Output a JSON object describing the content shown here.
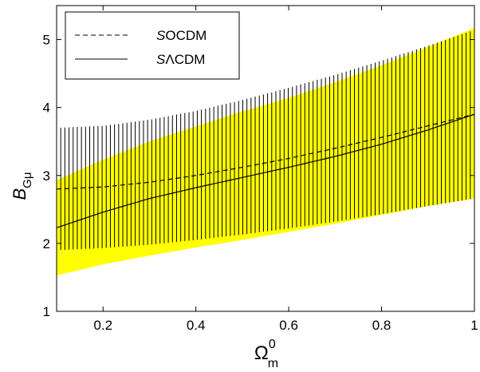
{
  "chart_data": {
    "type": "line",
    "x_range": [
      0.1,
      1.0
    ],
    "ylim": [
      1,
      5.5
    ],
    "x_ticks": [
      0.2,
      0.4,
      0.6,
      0.8,
      1.0
    ],
    "x_tick_labels": [
      "0.2",
      "0.4",
      "0.6",
      "0.8",
      "1"
    ],
    "y_ticks": [
      1,
      2,
      3,
      4,
      5
    ],
    "y_tick_labels": [
      "1",
      "2",
      "3",
      "4",
      "5"
    ],
    "ylabel_main": "B",
    "ylabel_sub": "Gμ",
    "xlabel_main": "Ω",
    "xlabel_sup": "0",
    "xlabel_sub": "m",
    "grid": false,
    "legend_position": "top-left",
    "series": [
      {
        "name_prefix": "S",
        "name_rest": "OCDM",
        "style": "dashed",
        "x": [
          0.1,
          0.2,
          0.3,
          0.4,
          0.5,
          0.6,
          0.7,
          0.8,
          0.9,
          1.0
        ],
        "y": [
          2.8,
          2.83,
          2.9,
          3.0,
          3.12,
          3.25,
          3.4,
          3.56,
          3.73,
          3.9
        ],
        "band_lower": [
          1.9,
          1.93,
          1.98,
          2.05,
          2.13,
          2.22,
          2.32,
          2.43,
          2.55,
          2.66
        ],
        "band_upper": [
          3.7,
          3.73,
          3.82,
          3.95,
          4.11,
          4.29,
          4.48,
          4.69,
          4.91,
          5.14
        ],
        "band_style": "vertical-hatch",
        "band_color": "#000000"
      },
      {
        "name_prefix": "S",
        "name_rest": "ΛCDM",
        "style": "solid",
        "x": [
          0.1,
          0.2,
          0.3,
          0.4,
          0.5,
          0.6,
          0.7,
          0.8,
          0.9,
          1.0
        ],
        "y": [
          2.23,
          2.46,
          2.66,
          2.82,
          2.97,
          3.12,
          3.28,
          3.46,
          3.67,
          3.9
        ],
        "band_lower": [
          1.53,
          1.69,
          1.82,
          1.94,
          2.05,
          2.17,
          2.29,
          2.42,
          2.55,
          2.66
        ],
        "band_upper": [
          2.93,
          3.23,
          3.5,
          3.72,
          3.94,
          4.14,
          4.37,
          4.62,
          4.89,
          5.17
        ],
        "band_style": "fill",
        "band_color": "#ffff00"
      }
    ]
  }
}
